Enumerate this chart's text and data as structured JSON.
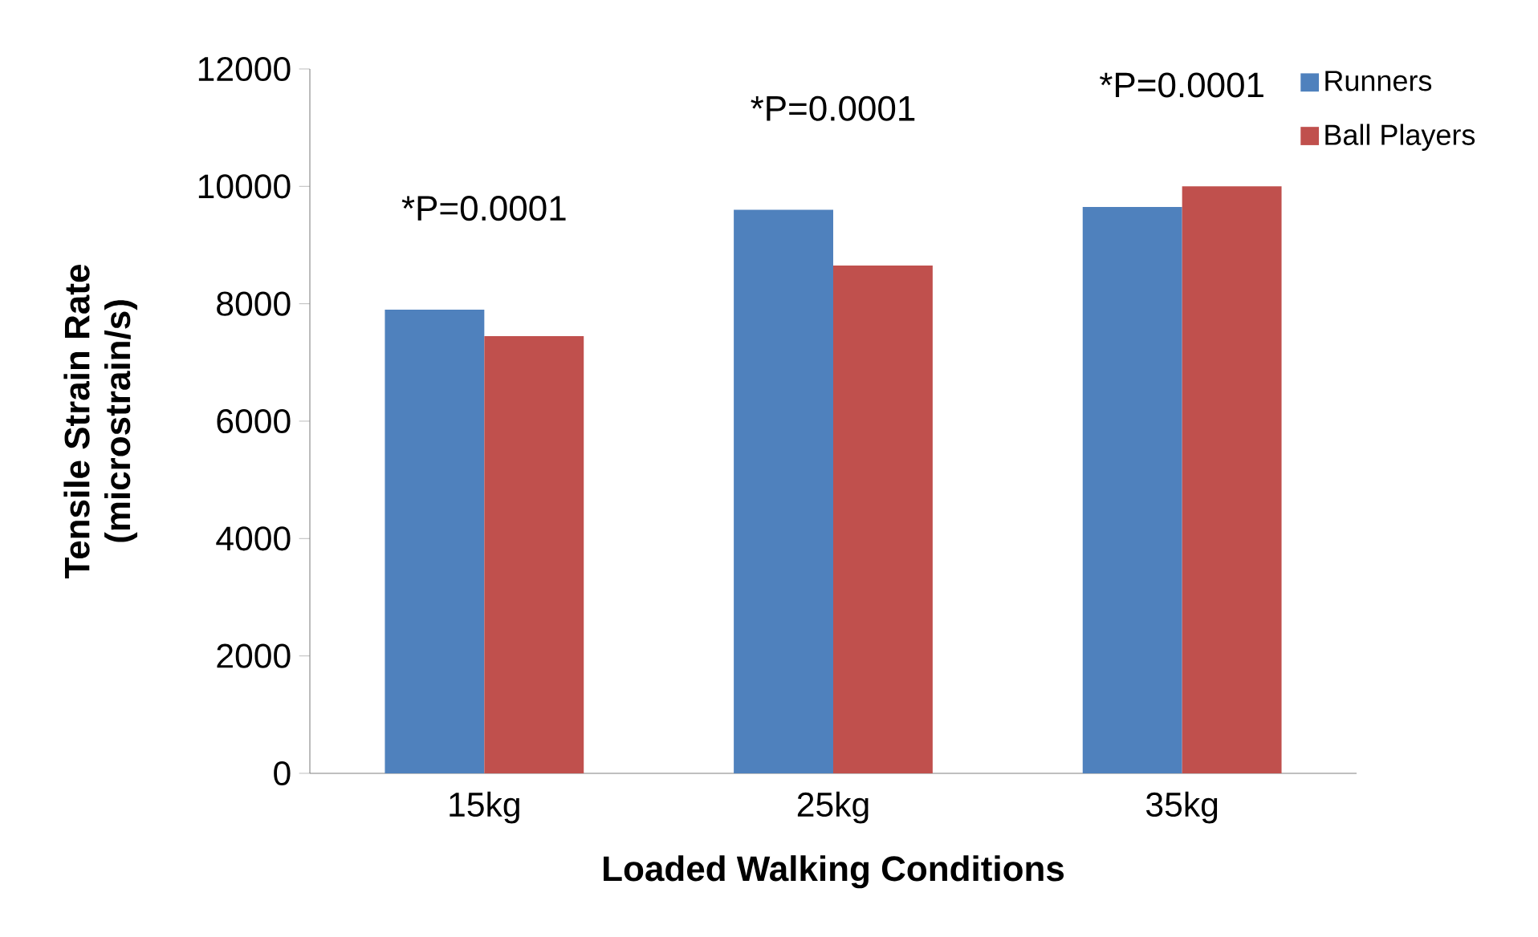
{
  "chart_data": {
    "type": "bar",
    "xlabel": "Loaded Walking Conditions",
    "ylabel": "Tensile Strain Rate (microstrain/s)",
    "categories": [
      "15kg",
      "25kg",
      "35kg"
    ],
    "series": [
      {
        "name": "Runners",
        "color": "#4f81bd",
        "values": [
          7900,
          9600,
          9650
        ]
      },
      {
        "name": "Ball Players",
        "color": "#c0504d",
        "values": [
          7450,
          8650,
          10000
        ]
      }
    ],
    "ylim": [
      0,
      12000
    ],
    "yticks": [
      0,
      2000,
      4000,
      6000,
      8000,
      10000,
      12000
    ],
    "legend": "top right",
    "annotations": [
      "*P=0.0001",
      "*P=0.0001",
      "*P=0.0001"
    ]
  }
}
